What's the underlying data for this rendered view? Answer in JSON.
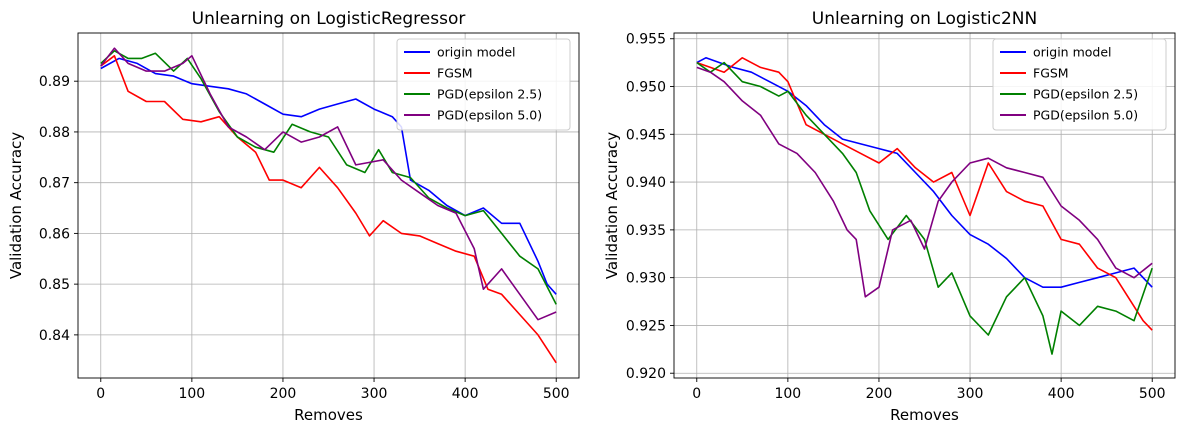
{
  "chart_data": [
    {
      "type": "line",
      "title": "Unlearning on LogisticRegressor",
      "xlabel": "Removes",
      "ylabel": "Validation Accuracy",
      "xlim": [
        -25,
        525
      ],
      "ylim": [
        0.8315,
        0.8995
      ],
      "xticks": [
        0,
        100,
        200,
        300,
        400,
        500
      ],
      "yticks": [
        0.84,
        0.85,
        0.86,
        0.87,
        0.88,
        0.89
      ],
      "ytick_labels": [
        "0.84",
        "0.85",
        "0.86",
        "0.87",
        "0.88",
        "0.89"
      ],
      "grid": true,
      "legend": "top-right",
      "series": [
        {
          "name": "origin model",
          "color": "#0000ff",
          "x": [
            0,
            20,
            40,
            60,
            80,
            100,
            120,
            140,
            160,
            180,
            200,
            220,
            240,
            260,
            280,
            300,
            320,
            330,
            340,
            360,
            380,
            400,
            420,
            440,
            460,
            480,
            490,
            500
          ],
          "y": [
            0.8925,
            0.8945,
            0.8935,
            0.8915,
            0.891,
            0.8895,
            0.889,
            0.8885,
            0.8875,
            0.8855,
            0.8835,
            0.883,
            0.8845,
            0.8855,
            0.8865,
            0.8845,
            0.883,
            0.881,
            0.8705,
            0.8685,
            0.8655,
            0.8635,
            0.865,
            0.862,
            0.862,
            0.8545,
            0.85,
            0.848
          ]
        },
        {
          "name": "FGSM",
          "color": "#ff0000",
          "x": [
            0,
            15,
            30,
            50,
            70,
            90,
            110,
            130,
            150,
            170,
            185,
            200,
            220,
            240,
            260,
            280,
            295,
            310,
            330,
            350,
            370,
            390,
            410,
            425,
            440,
            460,
            480,
            500
          ],
          "y": [
            0.893,
            0.895,
            0.888,
            0.886,
            0.886,
            0.8825,
            0.882,
            0.883,
            0.879,
            0.876,
            0.8705,
            0.8705,
            0.869,
            0.873,
            0.869,
            0.864,
            0.8595,
            0.8625,
            0.86,
            0.8595,
            0.858,
            0.8565,
            0.8555,
            0.849,
            0.848,
            0.844,
            0.84,
            0.8345
          ]
        },
        {
          "name": "PGD(epsilon 2.5)",
          "color": "#008000",
          "x": [
            0,
            15,
            30,
            45,
            60,
            80,
            95,
            110,
            130,
            150,
            170,
            190,
            210,
            230,
            250,
            270,
            290,
            305,
            320,
            340,
            360,
            380,
            400,
            420,
            440,
            460,
            480,
            500
          ],
          "y": [
            0.8935,
            0.896,
            0.8945,
            0.8945,
            0.8955,
            0.892,
            0.8945,
            0.8905,
            0.884,
            0.879,
            0.877,
            0.876,
            0.8815,
            0.88,
            0.879,
            0.8735,
            0.872,
            0.8765,
            0.872,
            0.871,
            0.867,
            0.865,
            0.8635,
            0.8645,
            0.86,
            0.8555,
            0.853,
            0.846
          ]
        },
        {
          "name": "PGD(epsilon 5.0)",
          "color": "#800080",
          "x": [
            0,
            15,
            30,
            50,
            70,
            90,
            100,
            120,
            140,
            160,
            180,
            200,
            220,
            240,
            260,
            280,
            295,
            310,
            330,
            350,
            370,
            390,
            410,
            420,
            440,
            460,
            480,
            500
          ],
          "y": [
            0.893,
            0.8965,
            0.8935,
            0.892,
            0.892,
            0.8935,
            0.895,
            0.8875,
            0.881,
            0.879,
            0.8765,
            0.88,
            0.878,
            0.879,
            0.881,
            0.8735,
            0.874,
            0.8745,
            0.8705,
            0.868,
            0.8655,
            0.864,
            0.857,
            0.849,
            0.853,
            0.848,
            0.843,
            0.8445
          ]
        }
      ]
    },
    {
      "type": "line",
      "title": "Unlearning on Logistic2NN",
      "xlabel": "Removes",
      "ylabel": "Validation Accuracy",
      "xlim": [
        -25,
        525
      ],
      "ylim": [
        0.9195,
        0.9556
      ],
      "xticks": [
        0,
        100,
        200,
        300,
        400,
        500
      ],
      "yticks": [
        0.92,
        0.925,
        0.93,
        0.935,
        0.94,
        0.945,
        0.95,
        0.955
      ],
      "ytick_labels": [
        "0.920",
        "0.925",
        "0.930",
        "0.935",
        "0.940",
        "0.945",
        "0.950",
        "0.955"
      ],
      "grid": true,
      "legend": "top-right",
      "series": [
        {
          "name": "origin model",
          "color": "#0000ff",
          "x": [
            0,
            10,
            25,
            40,
            60,
            80,
            100,
            120,
            140,
            160,
            180,
            200,
            220,
            240,
            260,
            280,
            300,
            320,
            340,
            360,
            380,
            400,
            420,
            440,
            460,
            480,
            500
          ],
          "y": [
            0.9525,
            0.953,
            0.9525,
            0.952,
            0.9515,
            0.9505,
            0.9495,
            0.948,
            0.946,
            0.9445,
            0.944,
            0.9435,
            0.943,
            0.941,
            0.939,
            0.9365,
            0.9345,
            0.9335,
            0.932,
            0.93,
            0.929,
            0.929,
            0.9295,
            0.93,
            0.9305,
            0.931,
            0.929
          ]
        },
        {
          "name": "FGSM",
          "color": "#ff0000",
          "x": [
            0,
            15,
            30,
            50,
            70,
            90,
            100,
            120,
            140,
            160,
            180,
            200,
            220,
            240,
            260,
            280,
            300,
            320,
            340,
            360,
            380,
            400,
            420,
            440,
            460,
            480,
            490,
            500
          ],
          "y": [
            0.9525,
            0.952,
            0.9515,
            0.953,
            0.952,
            0.9515,
            0.9505,
            0.946,
            0.945,
            0.944,
            0.943,
            0.942,
            0.9435,
            0.9415,
            0.94,
            0.941,
            0.9365,
            0.942,
            0.939,
            0.938,
            0.9375,
            0.934,
            0.9335,
            0.931,
            0.93,
            0.927,
            0.9255,
            0.9245
          ]
        },
        {
          "name": "PGD(epsilon 2.5)",
          "color": "#008000",
          "x": [
            0,
            15,
            30,
            50,
            70,
            90,
            100,
            120,
            140,
            160,
            175,
            190,
            210,
            230,
            250,
            265,
            280,
            300,
            320,
            340,
            360,
            380,
            390,
            400,
            420,
            440,
            460,
            480,
            500
          ],
          "y": [
            0.9525,
            0.9515,
            0.9525,
            0.9505,
            0.95,
            0.949,
            0.9495,
            0.947,
            0.945,
            0.943,
            0.941,
            0.937,
            0.934,
            0.9365,
            0.934,
            0.929,
            0.9305,
            0.926,
            0.924,
            0.928,
            0.93,
            0.926,
            0.922,
            0.9265,
            0.925,
            0.927,
            0.9265,
            0.9255,
            0.931
          ]
        },
        {
          "name": "PGD(epsilon 5.0)",
          "color": "#800080",
          "x": [
            0,
            15,
            30,
            50,
            70,
            90,
            110,
            130,
            150,
            165,
            175,
            185,
            200,
            215,
            235,
            250,
            265,
            280,
            300,
            320,
            340,
            360,
            380,
            400,
            420,
            440,
            460,
            480,
            500
          ],
          "y": [
            0.952,
            0.9515,
            0.9505,
            0.9485,
            0.947,
            0.944,
            0.943,
            0.941,
            0.938,
            0.935,
            0.934,
            0.928,
            0.929,
            0.935,
            0.936,
            0.933,
            0.938,
            0.94,
            0.942,
            0.9425,
            0.9415,
            0.941,
            0.9405,
            0.9375,
            0.936,
            0.934,
            0.931,
            0.93,
            0.9315
          ]
        }
      ]
    }
  ]
}
